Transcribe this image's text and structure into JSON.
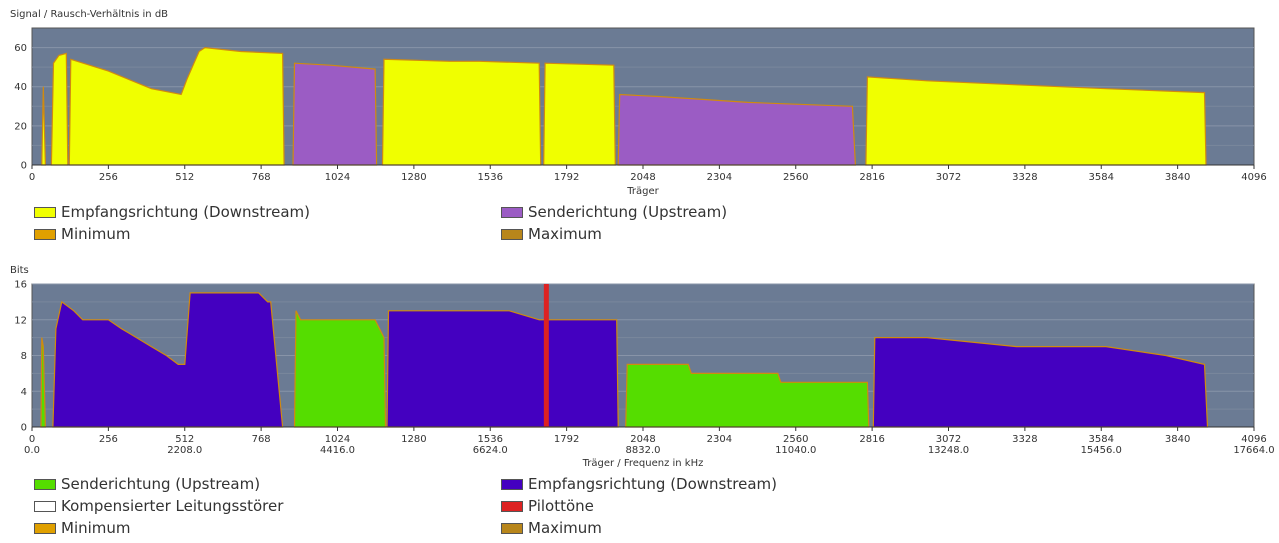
{
  "chart_data": [
    {
      "type": "area",
      "ylabel": "Signal / Rausch-Verhältnis in dB",
      "xlabel": "Träger",
      "xlim": [
        0,
        4096
      ],
      "ylim": [
        0,
        70
      ],
      "yticks": [
        0,
        20,
        40,
        60
      ],
      "xticks": [
        0,
        256,
        512,
        768,
        1024,
        1280,
        1536,
        1792,
        2048,
        2304,
        2560,
        2816,
        3072,
        3328,
        3584,
        3840,
        4096
      ],
      "background": "#6b7b94",
      "grid": true,
      "series": [
        {
          "name": "Empfangsrichtung (Downstream)",
          "color": "#f0ff00",
          "segments": [
            [
              [
                33,
                0
              ],
              [
                38,
                40
              ],
              [
                45,
                0
              ]
            ],
            [
              [
                65,
                0
              ],
              [
                72,
                52
              ],
              [
                90,
                56
              ],
              [
                115,
                57
              ],
              [
                120,
                0
              ]
            ],
            [
              [
                125,
                0
              ],
              [
                130,
                54
              ],
              [
                256,
                48
              ],
              [
                400,
                39
              ],
              [
                500,
                36
              ],
              [
                520,
                44
              ],
              [
                560,
                58
              ],
              [
                580,
                60
              ],
              [
                700,
                58
              ],
              [
                840,
                57
              ],
              [
                845,
                0
              ]
            ],
            [
              [
                1175,
                0
              ],
              [
                1180,
                54
              ],
              [
                1400,
                53
              ],
              [
                1500,
                53
              ],
              [
                1700,
                52
              ],
              [
                1705,
                0
              ]
            ],
            [
              [
                1715,
                0
              ],
              [
                1720,
                52
              ],
              [
                1950,
                51
              ],
              [
                1955,
                0
              ]
            ],
            [
              [
                2795,
                0
              ],
              [
                2800,
                45
              ],
              [
                3000,
                43
              ],
              [
                3300,
                41
              ],
              [
                3600,
                39
              ],
              [
                3930,
                37
              ],
              [
                3935,
                0
              ]
            ]
          ]
        },
        {
          "name": "Senderichtung (Upstream)",
          "color": "#9b5cc4",
          "segments": [
            [
              [
                875,
                0
              ],
              [
                880,
                52
              ],
              [
                1000,
                51
              ],
              [
                1150,
                49
              ],
              [
                1155,
                0
              ]
            ],
            [
              [
                1965,
                0
              ],
              [
                1970,
                36
              ],
              [
                2100,
                35
              ],
              [
                2400,
                32
              ],
              [
                2750,
                30
              ],
              [
                2760,
                0
              ]
            ]
          ]
        }
      ],
      "legend": [
        {
          "label": "Empfangsrichtung (Downstream)",
          "color": "#f0ff00"
        },
        {
          "label": "Senderichtung (Upstream)",
          "color": "#9b5cc4"
        },
        {
          "label": "Minimum",
          "color": "#e0a000"
        },
        {
          "label": "Maximum",
          "color": "#b8861b"
        }
      ]
    },
    {
      "type": "area",
      "ylabel": "Bits",
      "xlabel": "Träger / Frequenz in kHz",
      "xlim": [
        0,
        4096
      ],
      "ylim": [
        0,
        16
      ],
      "yticks": [
        0,
        4,
        8,
        12,
        16
      ],
      "xticks": [
        0,
        256,
        512,
        768,
        1024,
        1280,
        1536,
        1792,
        2048,
        2304,
        2560,
        2816,
        3072,
        3328,
        3584,
        3840,
        4096
      ],
      "xticks_freq": [
        {
          "x": 0,
          "label": "0.0"
        },
        {
          "x": 512,
          "label": "2208.0"
        },
        {
          "x": 1024,
          "label": "4416.0"
        },
        {
          "x": 1536,
          "label": "6624.0"
        },
        {
          "x": 2048,
          "label": "8832.0"
        },
        {
          "x": 2560,
          "label": "11040.0"
        },
        {
          "x": 3072,
          "label": "13248.0"
        },
        {
          "x": 3584,
          "label": "15456.0"
        },
        {
          "x": 4096,
          "label": "17664.0"
        }
      ],
      "background": "#6b7b94",
      "grid": true,
      "pilot_carrier": 1724,
      "series": [
        {
          "name": "Senderichtung (Upstream)",
          "color": "#55dd00",
          "segments": [
            [
              [
                30,
                0
              ],
              [
                33,
                10
              ],
              [
                38,
                9
              ],
              [
                45,
                0
              ]
            ],
            [
              [
                880,
                0
              ],
              [
                885,
                13
              ],
              [
                900,
                12
              ],
              [
                1150,
                12
              ],
              [
                1180,
                10
              ],
              [
                1185,
                0
              ]
            ],
            [
              [
                1990,
                0
              ],
              [
                1995,
                7
              ],
              [
                2200,
                7
              ],
              [
                2210,
                6
              ],
              [
                2500,
                6
              ],
              [
                2510,
                5
              ],
              [
                2800,
                5
              ],
              [
                2805,
                0
              ]
            ]
          ]
        },
        {
          "name": "Empfangsrichtung (Downstream)",
          "color": "#4400c0",
          "segments": [
            [
              [
                70,
                0
              ],
              [
                80,
                11
              ],
              [
                100,
                14
              ],
              [
                140,
                13
              ],
              [
                170,
                12
              ],
              [
                256,
                12
              ],
              [
                300,
                11
              ],
              [
                350,
                10
              ],
              [
                400,
                9
              ],
              [
                450,
                8
              ],
              [
                490,
                7
              ],
              [
                512,
                7
              ],
              [
                530,
                15
              ],
              [
                760,
                15
              ],
              [
                790,
                14
              ],
              [
                800,
                14
              ],
              [
                840,
                0
              ]
            ],
            [
              [
                1190,
                0
              ],
              [
                1195,
                13
              ],
              [
                1300,
                13
              ],
              [
                1400,
                13
              ],
              [
                1500,
                13
              ],
              [
                1600,
                13
              ],
              [
                1700,
                12
              ],
              [
                1800,
                12
              ],
              [
                1900,
                12
              ],
              [
                1960,
                12
              ],
              [
                1965,
                0
              ]
            ],
            [
              [
                2820,
                0
              ],
              [
                2825,
                10
              ],
              [
                3000,
                10
              ],
              [
                3300,
                9
              ],
              [
                3600,
                9
              ],
              [
                3800,
                8
              ],
              [
                3930,
                7
              ],
              [
                3940,
                0
              ]
            ]
          ]
        }
      ],
      "legend": [
        {
          "label": "Senderichtung (Upstream)",
          "color": "#55dd00"
        },
        {
          "label": "Empfangsrichtung (Downstream)",
          "color": "#4400c0"
        },
        {
          "label": "Kompensierter Leitungsstörer",
          "color": "#ffffff"
        },
        {
          "label": "Pilottöne",
          "color": "#dd2222"
        },
        {
          "label": "Minimum",
          "color": "#e0a000"
        },
        {
          "label": "Maximum",
          "color": "#b8861b"
        }
      ]
    }
  ]
}
